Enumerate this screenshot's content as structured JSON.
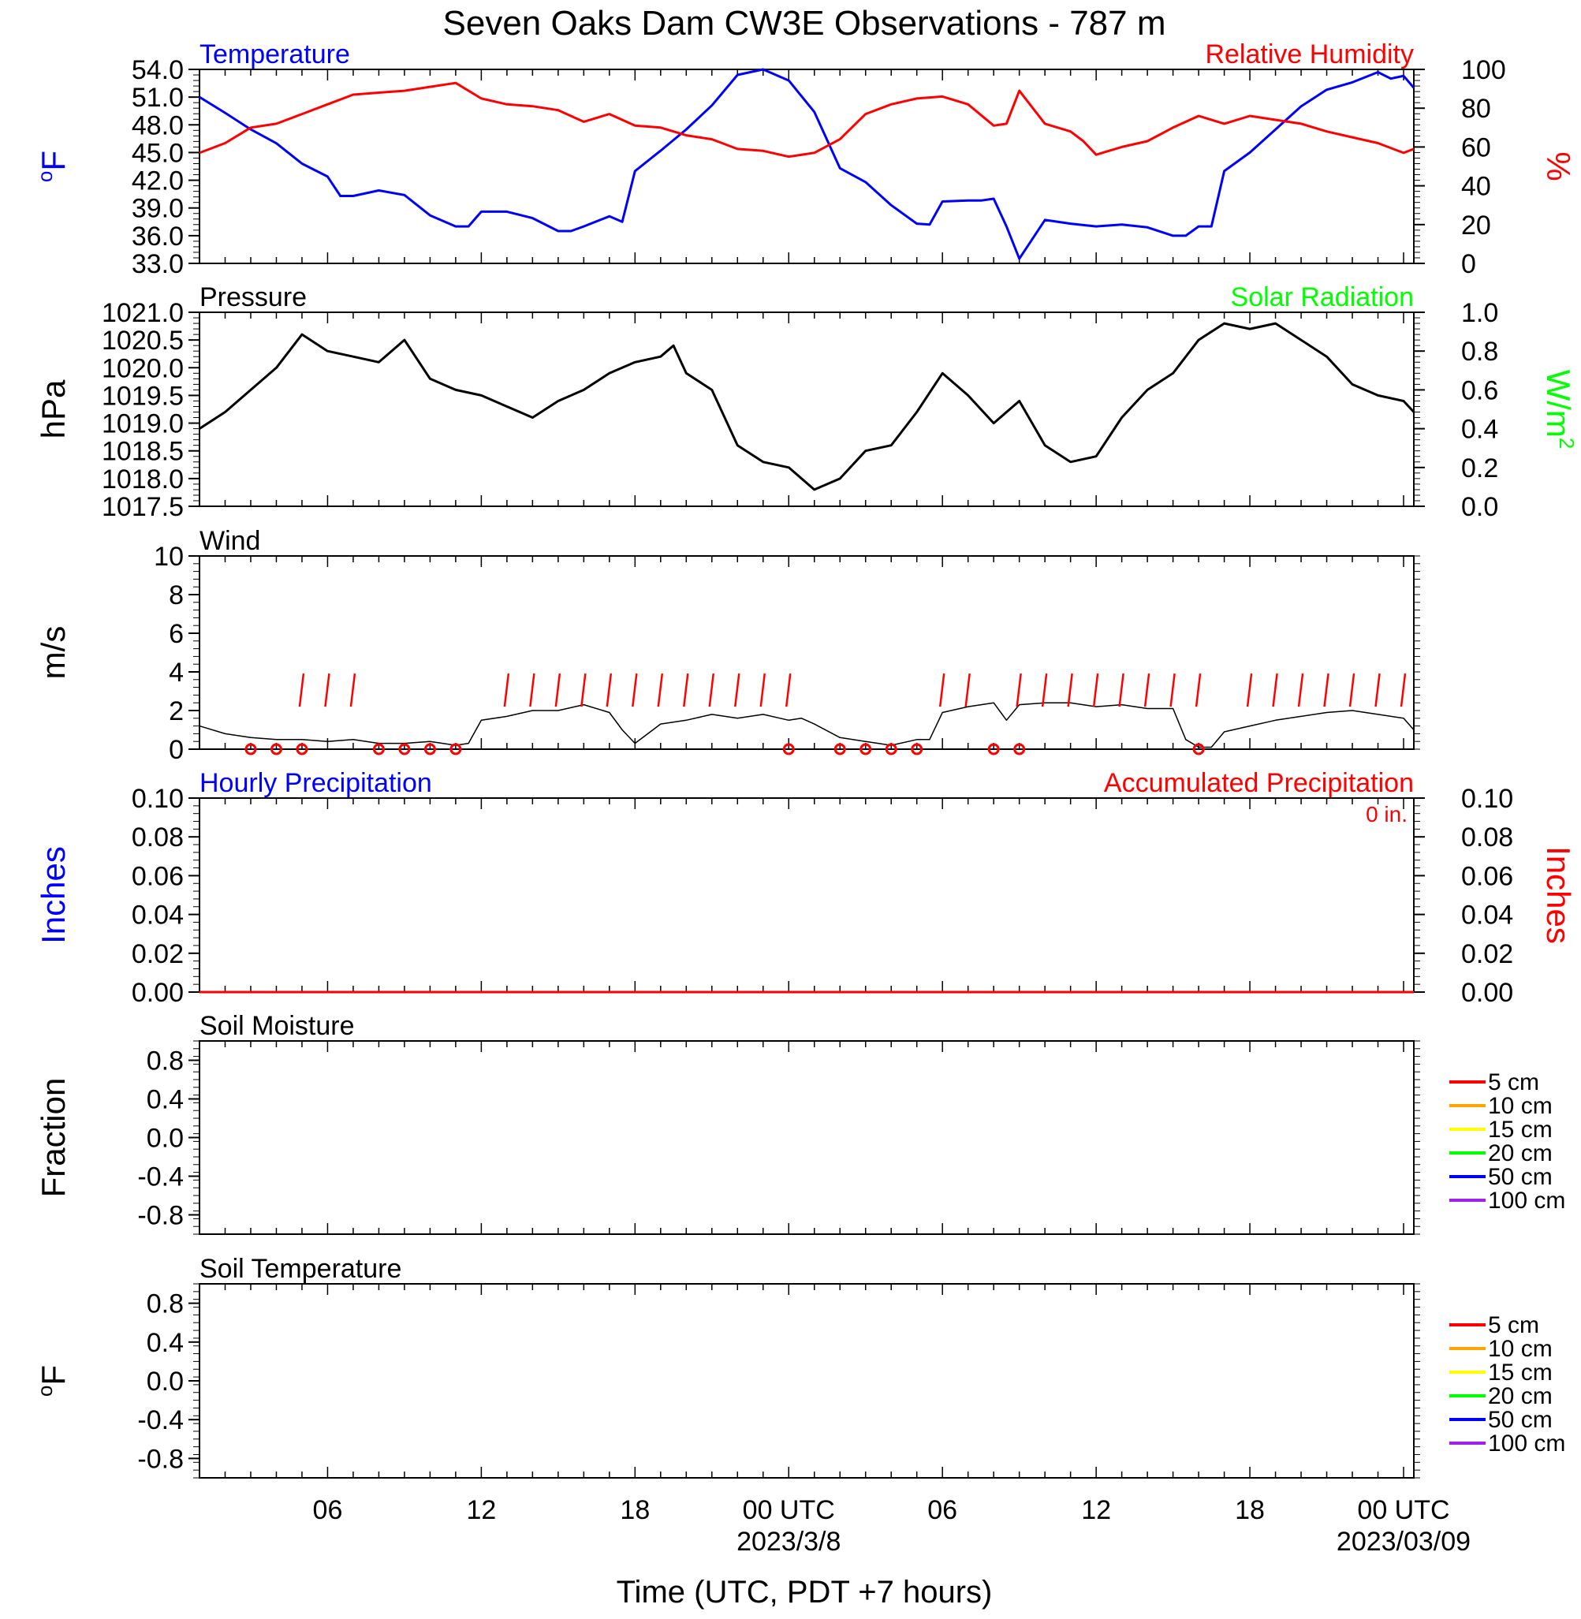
{
  "title": "Seven Oaks Dam CW3E Observations - 787 m",
  "xaxis": {
    "label": "Time (UTC, PDT +7 hours)",
    "ticks": [
      "06",
      "12",
      "18",
      "00 UTC",
      "06",
      "12",
      "18",
      "00 UTC"
    ],
    "tick_hours": [
      6,
      12,
      18,
      24,
      30,
      36,
      42,
      48
    ],
    "date_labels": [
      {
        "text": "2023/3/8",
        "hour": 24
      },
      {
        "text": "2023/03/09",
        "hour": 48
      }
    ],
    "range_hours": [
      1,
      48.4
    ]
  },
  "chart_data": [
    {
      "type": "line",
      "title_left": "Temperature",
      "title_right": "Relative Humidity",
      "ylabel_left": "oF",
      "ylabel_right": "%",
      "ylim_left": [
        33,
        54
      ],
      "yticks_left": [
        "33.0",
        "36.0",
        "39.0",
        "42.0",
        "45.0",
        "48.0",
        "51.0",
        "54.0"
      ],
      "ylim_right": [
        0,
        100
      ],
      "yticks_right": [
        "0",
        "20",
        "40",
        "60",
        "80",
        "100"
      ],
      "series": [
        {
          "name": "Temperature",
          "axis": "left",
          "color": "#0000ff",
          "x": [
            1,
            2,
            3,
            4,
            5,
            6,
            6.5,
            7,
            8,
            9,
            10,
            11,
            11.5,
            12,
            13,
            14,
            15,
            15.5,
            16,
            17,
            17.5,
            18,
            19,
            20,
            21,
            22,
            23,
            24,
            25,
            26,
            27,
            28,
            29,
            29.5,
            30,
            31,
            31.5,
            32,
            32.5,
            33,
            34,
            35,
            36,
            37,
            38,
            39,
            39.5,
            40,
            40.5,
            41,
            42,
            43,
            44,
            45,
            46,
            47,
            47.5,
            48,
            48.4
          ],
          "y": [
            51.0,
            49.3,
            47.5,
            46.0,
            43.8,
            42.4,
            40.3,
            40.3,
            40.9,
            40.4,
            38.2,
            37.0,
            37.0,
            38.6,
            38.6,
            37.9,
            36.5,
            36.5,
            37.0,
            38.1,
            37.5,
            43.0,
            45.2,
            47.5,
            50.1,
            53.4,
            54.0,
            52.8,
            49.4,
            43.3,
            41.8,
            39.3,
            37.3,
            37.2,
            39.7,
            39.8,
            39.8,
            40.0,
            37.0,
            33.5,
            37.7,
            37.3,
            37.0,
            37.2,
            36.9,
            36.0,
            36.0,
            37.0,
            37.0,
            43.0,
            45.0,
            47.5,
            50.0,
            51.8,
            52.6,
            53.7,
            53.0,
            53.3,
            52.0
          ]
        },
        {
          "name": "Relative Humidity",
          "axis": "right",
          "color": "#ff0000",
          "x": [
            1,
            2,
            3,
            4,
            5,
            6,
            7,
            8,
            9,
            10,
            11,
            12,
            13,
            14,
            15,
            16,
            17,
            18,
            19,
            20,
            21,
            22,
            23,
            24,
            25,
            26,
            27,
            28,
            29,
            30,
            31,
            32,
            32.5,
            33,
            34,
            35,
            35.5,
            36,
            37,
            38,
            39,
            40,
            41,
            42,
            43,
            44,
            45,
            46,
            47,
            48,
            48.4
          ],
          "y": [
            57,
            62,
            70,
            72,
            77,
            82,
            87,
            88,
            89,
            91,
            93,
            85,
            82,
            81,
            79,
            73,
            77,
            71,
            70,
            66,
            64,
            59,
            58,
            55,
            57,
            64,
            77,
            82,
            85,
            86,
            82,
            71,
            72,
            89,
            72,
            68,
            63,
            56,
            60,
            63,
            70,
            76,
            72,
            76,
            74,
            72,
            68,
            65,
            62,
            57,
            59
          ]
        }
      ]
    },
    {
      "type": "line",
      "title_left": "Pressure",
      "title_right": "Solar Radiation",
      "ylabel_left": "hPa",
      "ylabel_right": "W/m2",
      "ylim_left": [
        1017.5,
        1021.0
      ],
      "yticks_left": [
        "1017.5",
        "1018.0",
        "1018.5",
        "1019.0",
        "1019.5",
        "1020.0",
        "1020.5",
        "1021.0"
      ],
      "ylim_right": [
        0,
        1
      ],
      "yticks_right": [
        "0.0",
        "0.2",
        "0.4",
        "0.6",
        "0.8",
        "1.0"
      ],
      "series": [
        {
          "name": "Pressure",
          "axis": "left",
          "color": "#000000",
          "x": [
            1,
            2,
            3,
            4,
            5,
            6,
            7,
            8,
            9,
            10,
            11,
            12,
            13,
            14,
            15,
            16,
            17,
            18,
            19,
            19.5,
            20,
            21,
            22,
            23,
            24,
            25,
            26,
            27,
            28,
            29,
            30,
            31,
            32,
            33,
            34,
            35,
            36,
            37,
            38,
            39,
            40,
            41,
            42,
            43,
            44,
            45,
            46,
            47,
            48,
            48.4
          ],
          "y": [
            1018.9,
            1019.2,
            1019.6,
            1020.0,
            1020.6,
            1020.3,
            1020.2,
            1020.1,
            1020.5,
            1019.8,
            1019.6,
            1019.5,
            1019.3,
            1019.1,
            1019.4,
            1019.6,
            1019.9,
            1020.1,
            1020.2,
            1020.4,
            1019.9,
            1019.6,
            1018.6,
            1018.3,
            1018.2,
            1017.8,
            1018.0,
            1018.5,
            1018.6,
            1019.2,
            1019.9,
            1019.5,
            1019.0,
            1019.4,
            1018.6,
            1018.3,
            1018.4,
            1019.1,
            1019.6,
            1019.9,
            1020.5,
            1020.8,
            1020.7,
            1020.8,
            1020.5,
            1020.2,
            1019.7,
            1019.5,
            1019.4,
            1019.2
          ]
        }
      ]
    },
    {
      "type": "line",
      "title_left": "Wind",
      "ylabel_left": "m/s",
      "ylim_left": [
        0,
        10
      ],
      "yticks_left": [
        "0",
        "2",
        "4",
        "6",
        "8",
        "10"
      ],
      "series": [
        {
          "name": "Wind",
          "axis": "left",
          "color": "#000000",
          "x": [
            1,
            2,
            3,
            4,
            5,
            6,
            7,
            8,
            9,
            10,
            11,
            11.5,
            12,
            13,
            14,
            15,
            16,
            17,
            17.5,
            18,
            19,
            20,
            21,
            22,
            23,
            24,
            24.5,
            25,
            26,
            27,
            28,
            29,
            29.5,
            30,
            31,
            32,
            32.5,
            33,
            34,
            35,
            36,
            37,
            38,
            39,
            39.5,
            40,
            40.5,
            41,
            42,
            43,
            44,
            45,
            46,
            47,
            48,
            48.4
          ],
          "y": [
            1.2,
            0.8,
            0.6,
            0.5,
            0.5,
            0.4,
            0.5,
            0.3,
            0.3,
            0.4,
            0.2,
            0.3,
            1.5,
            1.7,
            2.0,
            2.0,
            2.3,
            1.9,
            1.0,
            0.3,
            1.3,
            1.5,
            1.8,
            1.6,
            1.8,
            1.5,
            1.6,
            1.3,
            0.6,
            0.4,
            0.2,
            0.5,
            0.5,
            1.9,
            2.2,
            2.4,
            1.5,
            2.3,
            2.4,
            2.4,
            2.2,
            2.3,
            2.1,
            2.1,
            0.5,
            0.1,
            0.1,
            0.9,
            1.2,
            1.5,
            1.7,
            1.9,
            2.0,
            1.8,
            1.6,
            1.0
          ]
        }
      ],
      "wind_barbs_hours": [
        5,
        6,
        7,
        13,
        14,
        15,
        16,
        17,
        18,
        19,
        20,
        21,
        22,
        23,
        24,
        30,
        31,
        33,
        34,
        35,
        36,
        37,
        38,
        39,
        40,
        42,
        43,
        44,
        45,
        46,
        47,
        48
      ],
      "calm_circles_hours": [
        3,
        4,
        5,
        8,
        9,
        10,
        11,
        24,
        26,
        27,
        28,
        29,
        32,
        33,
        40
      ]
    },
    {
      "type": "line",
      "title_left": "Hourly Precipitation",
      "title_right": "Accumulated Precipitation",
      "annotation": "0 in.",
      "ylabel_left": "Inches",
      "ylabel_right": "Inches",
      "ylim_left": [
        0,
        0.1
      ],
      "yticks_left": [
        "0.00",
        "0.02",
        "0.04",
        "0.06",
        "0.08",
        "0.10"
      ],
      "ylim_right": [
        0,
        0.1
      ],
      "yticks_right": [
        "0.00",
        "0.02",
        "0.04",
        "0.06",
        "0.08",
        "0.10"
      ],
      "series": [
        {
          "name": "Hourly Precipitation",
          "axis": "left",
          "color": "#0000ff",
          "x": [
            1,
            48.4
          ],
          "y": [
            0,
            0
          ]
        },
        {
          "name": "Accumulated Precipitation",
          "axis": "right",
          "color": "#ff0000",
          "x": [
            1,
            48.4
          ],
          "y": [
            0,
            0
          ]
        }
      ]
    },
    {
      "type": "line",
      "title_left": "Soil Moisture",
      "ylabel_left": "Fraction",
      "ylim_left": [
        -1,
        1
      ],
      "yticks_left": [
        "-0.8",
        "-0.4",
        "0.0",
        "0.4",
        "0.8"
      ],
      "legend": [
        {
          "label": "5 cm",
          "color": "#ff0000"
        },
        {
          "label": "10 cm",
          "color": "#ffa500"
        },
        {
          "label": "15 cm",
          "color": "#ffff00"
        },
        {
          "label": "20 cm",
          "color": "#00ff00"
        },
        {
          "label": "50 cm",
          "color": "#0000ff"
        },
        {
          "label": "100 cm",
          "color": "#a020f0"
        }
      ],
      "series": []
    },
    {
      "type": "line",
      "title_left": "Soil Temperature",
      "ylabel_left": "oF",
      "ylim_left": [
        -1,
        1
      ],
      "yticks_left": [
        "-0.8",
        "-0.4",
        "0.0",
        "0.4",
        "0.8"
      ],
      "legend": [
        {
          "label": "5 cm",
          "color": "#ff0000"
        },
        {
          "label": "10 cm",
          "color": "#ffa500"
        },
        {
          "label": "15 cm",
          "color": "#ffff00"
        },
        {
          "label": "20 cm",
          "color": "#00ff00"
        },
        {
          "label": "50 cm",
          "color": "#0000ff"
        },
        {
          "label": "100 cm",
          "color": "#a020f0"
        }
      ],
      "series": []
    }
  ]
}
